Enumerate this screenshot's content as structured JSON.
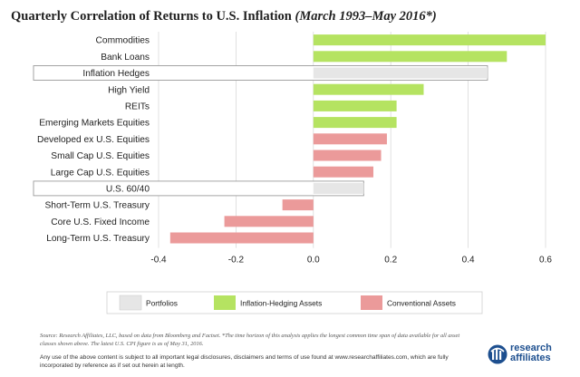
{
  "title": {
    "main": "Quarterly Correlation of Returns to U.S. Inflation",
    "sub": "(March 1993–May 2016*)"
  },
  "chart_data": {
    "type": "bar",
    "orientation": "horizontal",
    "categories": [
      "Commodities",
      "Bank Loans",
      "Inflation Hedges",
      "High Yield",
      "REITs",
      "Emerging Markets Equities",
      "Developed ex U.S. Equities",
      "Small Cap U.S. Equities",
      "Large Cap U.S. Equities",
      "U.S. 60/40",
      "Short-Term U.S. Treasury",
      "Core U.S. Fixed Income",
      "Long-Term U.S. Treasury"
    ],
    "values": [
      0.6,
      0.5,
      0.45,
      0.285,
      0.215,
      0.215,
      0.19,
      0.175,
      0.155,
      0.13,
      -0.08,
      -0.23,
      -0.37
    ],
    "groups": [
      "Inflation-Hedging Assets",
      "Inflation-Hedging Assets",
      "Portfolios",
      "Inflation-Hedging Assets",
      "Inflation-Hedging Assets",
      "Inflation-Hedging Assets",
      "Conventional Assets",
      "Conventional Assets",
      "Conventional Assets",
      "Portfolios",
      "Conventional Assets",
      "Conventional Assets",
      "Conventional Assets"
    ],
    "xlim": [
      -0.4,
      0.6
    ],
    "xticks": [
      "-0.4",
      "-0.2",
      "0.0",
      "0.2",
      "0.4",
      "0.6"
    ],
    "xtick_values": [
      -0.4,
      -0.2,
      0.0,
      0.2,
      0.4,
      0.6
    ],
    "grid": "vertical",
    "legend": {
      "placement": "bottom",
      "entries": [
        {
          "label": "Portfolios",
          "color": "#e6e6e6"
        },
        {
          "label": "Inflation-Hedging Assets",
          "color": "#b5e361"
        },
        {
          "label": "Conventional Assets",
          "color": "#eb9a9a"
        }
      ]
    }
  },
  "footer": {
    "source": "Source: Research Affiliates, LLC, based on data from Bloomberg and Factset. *The time horizon of this analysis applies the longest common time span of data available for all asset classes shown above.  The latest U.S. CPI figure is as of May 31, 2016.",
    "disclaimer": "Any use of the above content is subject to all important legal disclosures, disclaimers and terms of use found at www.researchaffiliates.com, which are fully incorporated by reference as if set out herein at length.",
    "logo_line1": "research",
    "logo_line2": "affiliates"
  },
  "colors": {
    "green": "#b5e361",
    "red": "#eb9a9a",
    "gray": "#e6e6e6",
    "brand": "#1d4f8f"
  }
}
